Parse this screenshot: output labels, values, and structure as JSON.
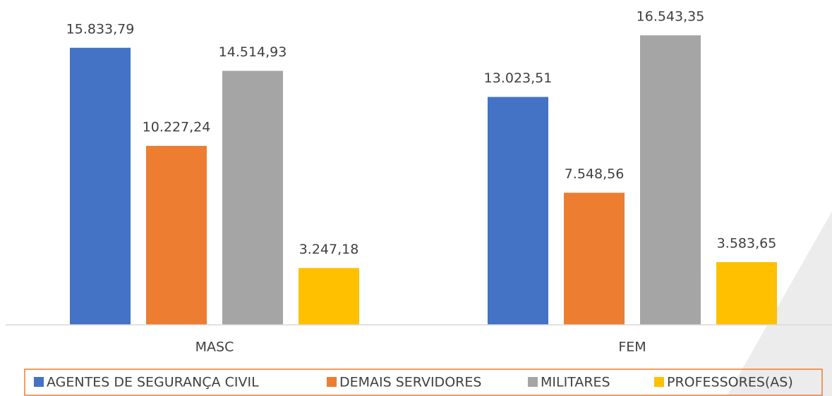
{
  "chart_data": {
    "type": "bar",
    "categories": [
      "MASC",
      "FEM"
    ],
    "series": [
      {
        "name": "AGENTES DE SEGURANÇA CIVIL",
        "color": "#4472c4",
        "values": [
          15833.79,
          13023.51
        ],
        "value_labels": [
          "15.833,79",
          "13.023,51"
        ]
      },
      {
        "name": "DEMAIS SERVIDORES",
        "color": "#ed7d31",
        "values": [
          10227.24,
          7548.56
        ],
        "value_labels": [
          "10.227,24",
          "7.548,56"
        ]
      },
      {
        "name": "MILITARES",
        "color": "#a5a5a5",
        "values": [
          14514.93,
          16543.35
        ],
        "value_labels": [
          "14.514,93",
          "16.543,35"
        ]
      },
      {
        "name": "PROFESSORES(AS)",
        "color": "#ffc000",
        "values": [
          3247.18,
          3583.65
        ],
        "value_labels": [
          "3.247,18",
          "3.583,65"
        ]
      }
    ],
    "ylim": [
      0,
      18000
    ]
  }
}
